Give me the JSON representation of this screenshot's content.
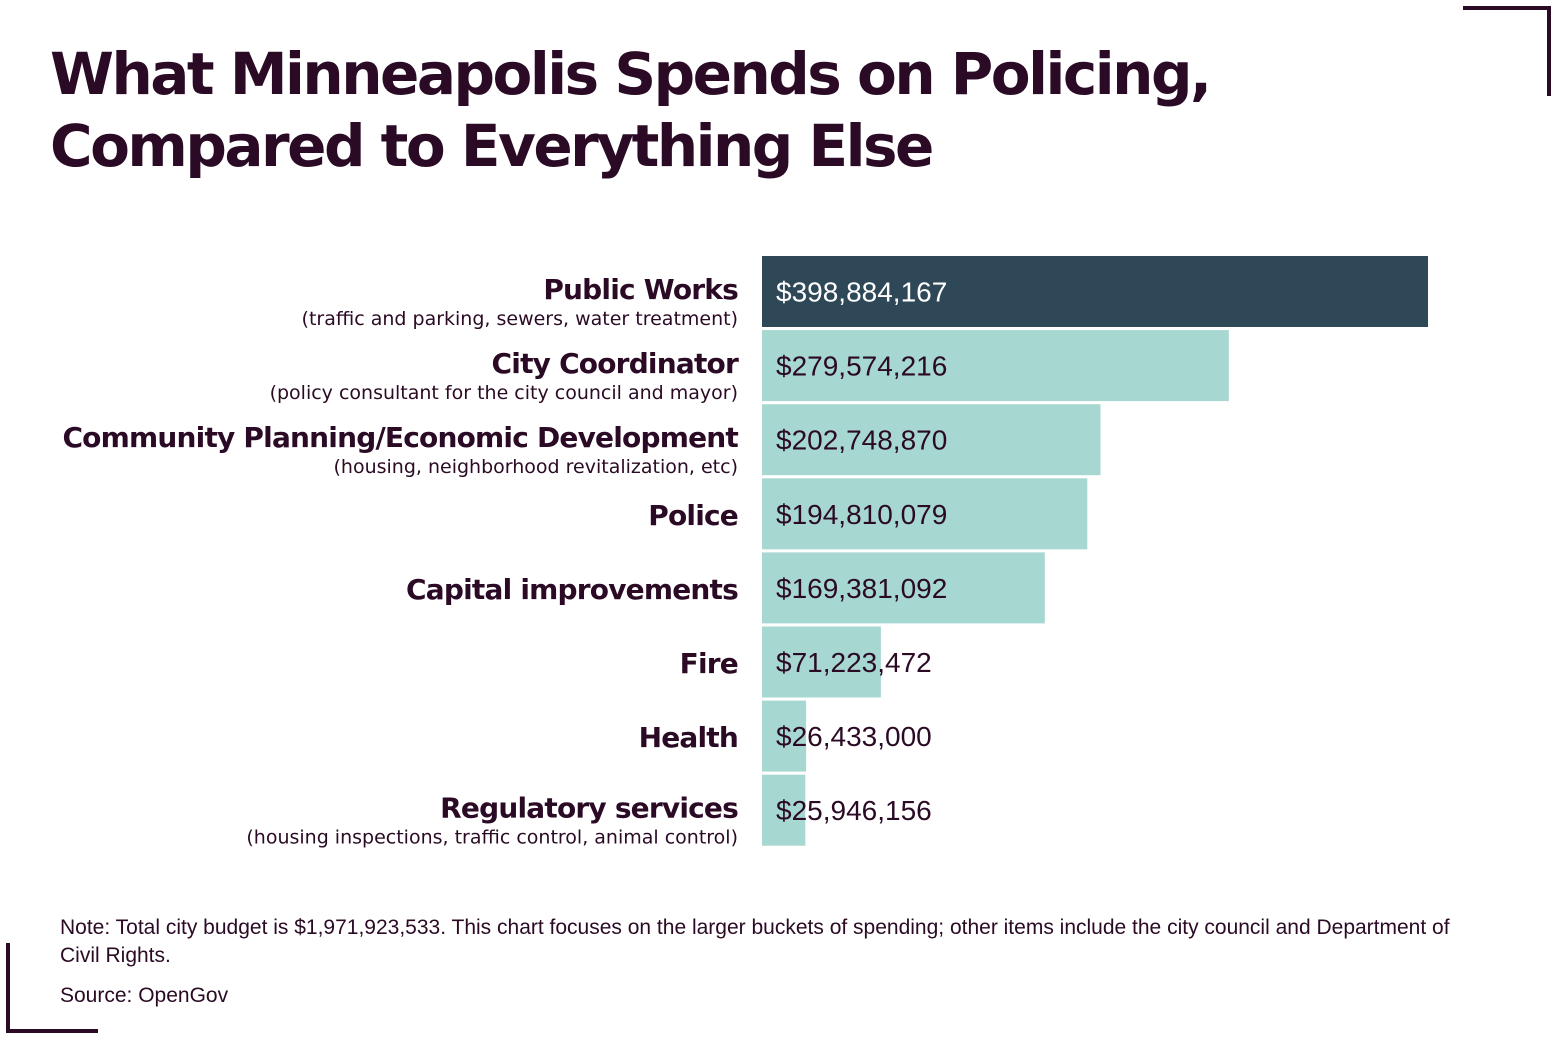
{
  "title_lines": [
    "What Minneapolis Spends on Policing,",
    "Compared to Everything Else"
  ],
  "note": "Note: Total city budget is $1,971,923,533. This chart focuses on the larger buckets of spending; other items include the city council and Department of Civil Rights.",
  "source": "Source: OpenGov",
  "colors": {
    "highlight": "#2f4858",
    "bar": "#a6d7d1",
    "text": "#2a0a24",
    "label_on_dark": "#ffffff"
  },
  "chart_data": {
    "type": "bar",
    "orientation": "horizontal",
    "categories": [
      "Public Works",
      "City Coordinator",
      "Community Planning/Economic Development",
      "Police",
      "Capital improvements",
      "Fire",
      "Health",
      "Regulatory services"
    ],
    "sublabels": [
      "(traffic and parking, sewers, water treatment)",
      "(policy consultant for the city council and mayor)",
      "(housing, neighborhood revitalization, etc)",
      "",
      "",
      "",
      "",
      "(housing inspections, traffic control, animal control)"
    ],
    "values": [
      398884167,
      279574216,
      202748870,
      194810079,
      169381092,
      71223472,
      26433000,
      25946156
    ],
    "value_labels": [
      "$398,884,167",
      "$279,574,216",
      "$202,748,870",
      "$194,810,079",
      "$169,381,092",
      "$71,223,472",
      "$26,433,000",
      "$25,946,156"
    ],
    "highlight_index": 0,
    "grid": false
  }
}
